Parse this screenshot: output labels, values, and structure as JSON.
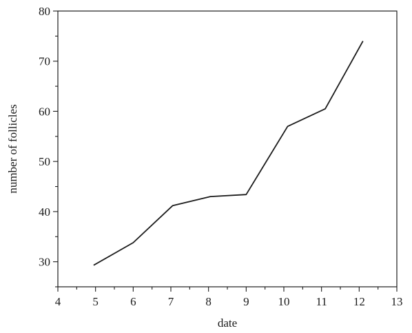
{
  "chart_data": {
    "type": "line",
    "title": "",
    "xlabel": "date",
    "ylabel": "number of follicles",
    "xlim": [
      4,
      13
    ],
    "ylim": [
      25,
      80
    ],
    "x_ticks": [
      4,
      5,
      6,
      7,
      8,
      9,
      10,
      11,
      12,
      13
    ],
    "y_ticks": [
      30,
      40,
      50,
      60,
      70,
      80
    ],
    "grid": false,
    "legend": "none",
    "series": [
      {
        "color": "#1a1a1a",
        "points": [
          {
            "x": 4.95,
            "y": 29.3
          },
          {
            "x": 6.0,
            "y": 33.8
          },
          {
            "x": 7.05,
            "y": 41.2
          },
          {
            "x": 8.05,
            "y": 43.0
          },
          {
            "x": 9.0,
            "y": 43.4
          },
          {
            "x": 10.1,
            "y": 57.0
          },
          {
            "x": 11.1,
            "y": 60.5
          },
          {
            "x": 12.1,
            "y": 74.0
          }
        ]
      }
    ]
  }
}
